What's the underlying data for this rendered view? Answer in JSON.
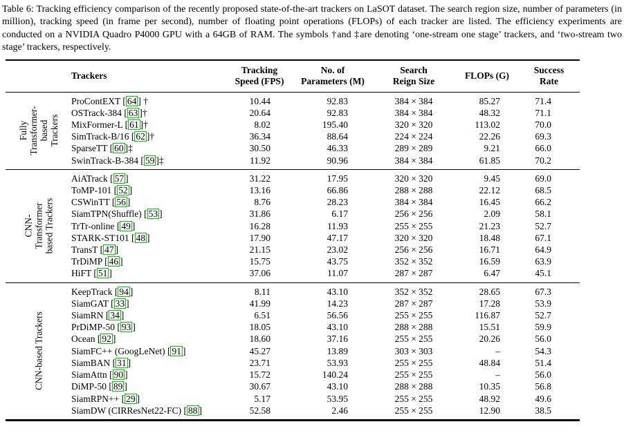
{
  "caption": {
    "text": "Table 6: Tracking efficiency comparison of the recently proposed state-of-the-art trackers on LaSOT dataset. The search region size, number of parameters (in million), tracking speed (in frame per second), number of floating point operations (FLOPs) of each tracker are listed. The efficiency experiments are conducted on a NVIDIA Quadro P4000 GPU with a 64GB of RAM. The symbols †and ‡are denoting ‘one-stream one stage’ trackers, and ‘two-stream two stage’ trackers, respectively."
  },
  "colors": {
    "citation_box": "#00cc00",
    "text": "#000000",
    "rules": "#000000"
  },
  "table": {
    "headers": {
      "trackers": "Trackers",
      "speed": "Tracking\nSpeed (FPS)",
      "params": "No. of\nParameters (M)",
      "size": "Search\nReign Size",
      "flops": "FLOPs (G)",
      "success": "Success\nRate"
    },
    "groups": [
      {
        "label": "Fully\nTransformer-\nbased\nTrackers",
        "slug": "fully-transformer-based-trackers",
        "rows": [
          {
            "name": "ProContEXT",
            "cite": "64",
            "mark": " †",
            "speed": "10.44",
            "params": "92.83",
            "size": "384 × 384",
            "flops": "85.27",
            "success": "71.4"
          },
          {
            "name": "OSTrack-384",
            "cite": "63",
            "mark": "†",
            "speed": "20.64",
            "params": "92.83",
            "size": "384 × 384",
            "flops": "48.32",
            "success": "71.1"
          },
          {
            "name": "MixFormer-L",
            "cite": "61",
            "mark": "†",
            "speed": "8.02",
            "params": "195.40",
            "size": "320 × 320",
            "flops": "113.02",
            "success": "70.0"
          },
          {
            "name": "SimTrack-B/16",
            "cite": "62",
            "mark": "†",
            "speed": "36.34",
            "params": "88.64",
            "size": "224 × 224",
            "flops": "22.26",
            "success": "69.3"
          },
          {
            "name": "SparseTT",
            "cite": "60",
            "mark": "‡",
            "speed": "30.50",
            "params": "46.33",
            "size": "289 × 289",
            "flops": "9.21",
            "success": "66.0"
          },
          {
            "name": "SwinTrack-B-384",
            "cite": "59",
            "mark": "‡",
            "speed": "11.92",
            "params": "90.96",
            "size": "384 × 384",
            "flops": "61.85",
            "success": "70.2"
          }
        ]
      },
      {
        "label": "CNN-\nTransformer\nbased Trackers",
        "slug": "cnn-transformer-based-trackers",
        "rows": [
          {
            "name": "AiATrack",
            "cite": "57",
            "mark": "",
            "speed": "31.22",
            "params": "17.95",
            "size": "320 × 320",
            "flops": "9.45",
            "success": "69.0"
          },
          {
            "name": "ToMP-101",
            "cite": "52",
            "mark": "",
            "speed": "13.16",
            "params": "66.86",
            "size": "288 × 288",
            "flops": "22.12",
            "success": "68.5"
          },
          {
            "name": "CSWinTT",
            "cite": "56",
            "mark": "",
            "speed": "8.76",
            "params": "28.23",
            "size": "384 × 384",
            "flops": "16.45",
            "success": "66.2"
          },
          {
            "name": "SiamTPN(Shuffle)",
            "cite": "53",
            "mark": "",
            "speed": "31.86",
            "params": "6.17",
            "size": "256 × 256",
            "flops": "2.09",
            "success": "58.1"
          },
          {
            "name": "TrTr-online",
            "cite": "49",
            "mark": "",
            "speed": "16.28",
            "params": "11.93",
            "size": "255 × 255",
            "flops": "21.23",
            "success": "52.7"
          },
          {
            "name": "STARK-ST101",
            "cite": "48",
            "mark": "",
            "speed": "17.90",
            "params": "47.17",
            "size": "320 × 320",
            "flops": "18.48",
            "success": "67.1"
          },
          {
            "name": "TransT",
            "cite": "47",
            "mark": "",
            "speed": "21.15",
            "params": "23.02",
            "size": "256 × 256",
            "flops": "16.71",
            "success": "64.9"
          },
          {
            "name": "TrDiMP",
            "cite": "46",
            "mark": "",
            "speed": "15.75",
            "params": "43.75",
            "size": "352 × 352",
            "flops": "16.59",
            "success": "63.9"
          },
          {
            "name": "HiFT",
            "cite": "51",
            "mark": "",
            "speed": "37.06",
            "params": "11.07",
            "size": "287 × 287",
            "flops": "6.47",
            "success": "45.1"
          }
        ]
      },
      {
        "label": "CNN-based Trackers",
        "slug": "cnn-based-trackers",
        "rows": [
          {
            "name": "KeepTrack",
            "cite": "94",
            "mark": "",
            "speed": "8.11",
            "params": "43.10",
            "size": "352 × 352",
            "flops": "28.65",
            "success": "67.3"
          },
          {
            "name": "SiamGAT",
            "cite": "33",
            "mark": "",
            "speed": "41.99",
            "params": "14.23",
            "size": "287 × 287",
            "flops": "17.28",
            "success": "53.9"
          },
          {
            "name": "SiamRN",
            "cite": "34",
            "mark": "",
            "speed": "6.51",
            "params": "56.56",
            "size": "255 × 255",
            "flops": "116.87",
            "success": "52.7"
          },
          {
            "name": "PrDiMP-50",
            "cite": "93",
            "mark": "",
            "speed": "18.05",
            "params": "43.10",
            "size": "288 × 288",
            "flops": "15.51",
            "success": "59.9"
          },
          {
            "name": "Ocean",
            "cite": "92",
            "mark": "",
            "speed": "18.60",
            "params": "37.16",
            "size": "255 × 255",
            "flops": "20.26",
            "success": "56.0"
          },
          {
            "name": "SiamFC++ (GoogLeNet)",
            "cite": "91",
            "mark": "",
            "speed": "45.27",
            "params": "13.89",
            "size": "303 × 303",
            "flops": "–",
            "success": "54.3"
          },
          {
            "name": "SiamBAN",
            "cite": "31",
            "mark": "",
            "speed": "23.71",
            "params": "53.93",
            "size": "255 × 255",
            "flops": "48.84",
            "success": "51.4"
          },
          {
            "name": "SiamAttn",
            "cite": "90",
            "mark": "",
            "speed": "15.72",
            "params": "140.24",
            "size": "255 × 255",
            "flops": "–",
            "success": "56.0"
          },
          {
            "name": "DiMP-50",
            "cite": "89",
            "mark": "",
            "speed": "30.67",
            "params": "43.10",
            "size": "288 × 288",
            "flops": "10.35",
            "success": "56.8"
          },
          {
            "name": "SiamRPN++",
            "cite": "29",
            "mark": "",
            "speed": "5.17",
            "params": "53.95",
            "size": "255 × 255",
            "flops": "48.92",
            "success": "49.6"
          },
          {
            "name": "SiamDW (CIRResNet22-FC)",
            "cite": "88",
            "mark": "",
            "speed": "52.58",
            "params": "2.46",
            "size": "255 × 255",
            "flops": "12.90",
            "success": "38.5"
          }
        ]
      }
    ]
  }
}
